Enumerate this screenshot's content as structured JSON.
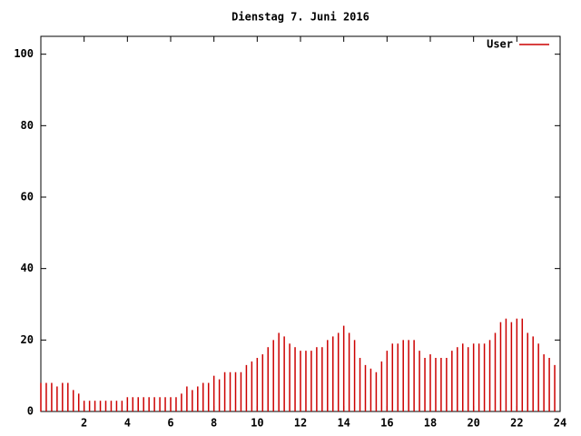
{
  "chart_data": {
    "type": "impulse",
    "title": "Dienstag 7. Juni 2016",
    "x": [
      0,
      0.25,
      0.5,
      0.75,
      1,
      1.25,
      1.5,
      1.75,
      2,
      2.25,
      2.5,
      2.75,
      3,
      3.25,
      3.5,
      3.75,
      4,
      4.25,
      4.5,
      4.75,
      5,
      5.25,
      5.5,
      5.75,
      6,
      6.25,
      6.5,
      6.75,
      7,
      7.25,
      7.5,
      7.75,
      8,
      8.25,
      8.5,
      8.75,
      9,
      9.25,
      9.5,
      9.75,
      10,
      10.25,
      10.5,
      10.75,
      11,
      11.25,
      11.5,
      11.75,
      12,
      12.25,
      12.5,
      12.75,
      13,
      13.25,
      13.5,
      13.75,
      14,
      14.25,
      14.5,
      14.75,
      15,
      15.25,
      15.5,
      15.75,
      16,
      16.25,
      16.5,
      16.75,
      17,
      17.25,
      17.5,
      17.75,
      18,
      18.25,
      18.5,
      18.75,
      19,
      19.25,
      19.5,
      19.75,
      20,
      20.25,
      20.5,
      20.75,
      21,
      21.25,
      21.5,
      21.75,
      22,
      22.25,
      22.5,
      22.75,
      23,
      23.25,
      23.5,
      23.75
    ],
    "series": [
      {
        "name": "User",
        "color": "#cc0000",
        "values": [
          8,
          8,
          8,
          7,
          8,
          8,
          6,
          5,
          3,
          3,
          3,
          3,
          3,
          3,
          3,
          3,
          4,
          4,
          4,
          4,
          4,
          4,
          4,
          4,
          4,
          4,
          5,
          7,
          6,
          7,
          8,
          8,
          10,
          9,
          11,
          11,
          11,
          11,
          13,
          14,
          15,
          16,
          18,
          20,
          22,
          21,
          19,
          18,
          17,
          17,
          17,
          18,
          18,
          20,
          21,
          22,
          24,
          22,
          20,
          15,
          13,
          12,
          11,
          14,
          17,
          19,
          19,
          20,
          20,
          20,
          17,
          15,
          16,
          15,
          15,
          15,
          17,
          18,
          19,
          18,
          19,
          19,
          19,
          20,
          22,
          25,
          26,
          25,
          26,
          26,
          22,
          21,
          19,
          16,
          15,
          13
        ]
      }
    ],
    "xlim": [
      0,
      24
    ],
    "xticks": [
      2,
      4,
      6,
      8,
      10,
      12,
      14,
      16,
      18,
      20,
      22,
      24
    ],
    "ylim": [
      0,
      105
    ],
    "yticks": [
      0,
      20,
      40,
      60,
      80,
      100
    ],
    "legend": "top-right"
  }
}
